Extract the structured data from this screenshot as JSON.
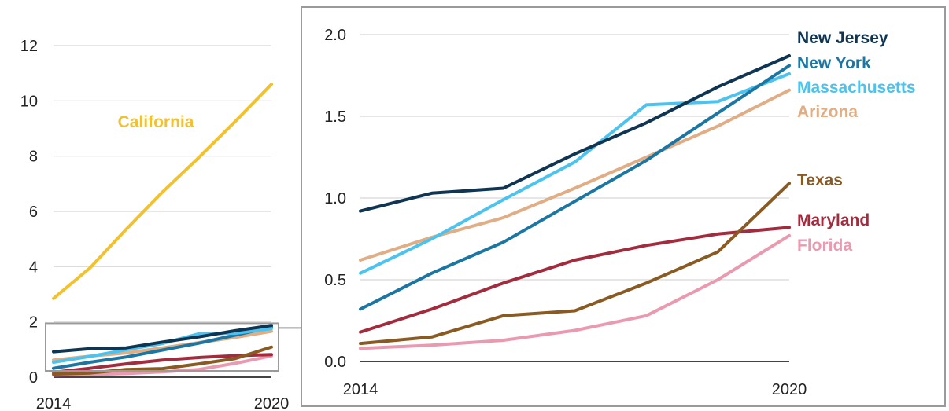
{
  "chart_data": [
    {
      "type": "line",
      "x": [
        2014,
        2015,
        2016,
        2017,
        2018,
        2019,
        2020
      ],
      "x_tick_labels": [
        "2014",
        "2020"
      ],
      "y_tick_labels": [
        "0",
        "2",
        "4",
        "6",
        "8",
        "10",
        "12"
      ],
      "ylim": [
        0,
        12
      ],
      "grid": true,
      "series": [
        {
          "name": "California",
          "color": "#f2c12e",
          "values": [
            2.85,
            3.95,
            5.35,
            6.7,
            7.95,
            9.25,
            10.6
          ]
        },
        {
          "color": "#0f3553",
          "values": [
            0.92,
            1.03,
            1.06,
            1.27,
            1.46,
            1.68,
            1.87
          ]
        },
        {
          "color": "#1b76a3",
          "values": [
            0.32,
            0.54,
            0.73,
            0.98,
            1.23,
            1.52,
            1.81
          ]
        },
        {
          "color": "#4cc3ee",
          "values": [
            0.54,
            0.75,
            0.99,
            1.22,
            1.57,
            1.59,
            1.76
          ]
        },
        {
          "color": "#e0ad84",
          "values": [
            0.62,
            0.76,
            0.88,
            1.06,
            1.25,
            1.44,
            1.66
          ]
        },
        {
          "color": "#8a5a23",
          "values": [
            0.11,
            0.15,
            0.28,
            0.31,
            0.48,
            0.67,
            1.09
          ]
        },
        {
          "color": "#a32b3e",
          "values": [
            0.18,
            0.32,
            0.48,
            0.62,
            0.71,
            0.78,
            0.82
          ]
        },
        {
          "color": "#ea9ab0",
          "values": [
            0.08,
            0.1,
            0.13,
            0.19,
            0.28,
            0.5,
            0.77
          ]
        }
      ]
    },
    {
      "type": "line",
      "x": [
        2014,
        2015,
        2016,
        2017,
        2018,
        2019,
        2020
      ],
      "x_tick_labels": [
        "2014",
        "2020"
      ],
      "y_tick_labels": [
        "0.0",
        "0.5",
        "1.0",
        "1.5",
        "2.0"
      ],
      "ylim": [
        0,
        2
      ],
      "grid": true,
      "series": [
        {
          "name": "New Jersey",
          "color": "#0f3553",
          "values": [
            0.92,
            1.03,
            1.06,
            1.27,
            1.46,
            1.68,
            1.87
          ]
        },
        {
          "name": "New York",
          "color": "#1b76a3",
          "values": [
            0.32,
            0.54,
            0.73,
            0.98,
            1.23,
            1.52,
            1.81
          ]
        },
        {
          "name": "Massachusetts",
          "color": "#4cc3ee",
          "values": [
            0.54,
            0.75,
            0.99,
            1.22,
            1.57,
            1.59,
            1.76
          ]
        },
        {
          "name": "Arizona",
          "color": "#e0ad84",
          "values": [
            0.62,
            0.76,
            0.88,
            1.06,
            1.25,
            1.44,
            1.66
          ]
        },
        {
          "name": "Texas",
          "color": "#8a5a23",
          "values": [
            0.11,
            0.15,
            0.28,
            0.31,
            0.48,
            0.67,
            1.09
          ]
        },
        {
          "name": "Maryland",
          "color": "#a32b3e",
          "values": [
            0.18,
            0.32,
            0.48,
            0.62,
            0.71,
            0.78,
            0.82
          ]
        },
        {
          "name": "Florida",
          "color": "#ea9ab0",
          "values": [
            0.08,
            0.1,
            0.13,
            0.19,
            0.28,
            0.5,
            0.77
          ]
        }
      ]
    }
  ]
}
